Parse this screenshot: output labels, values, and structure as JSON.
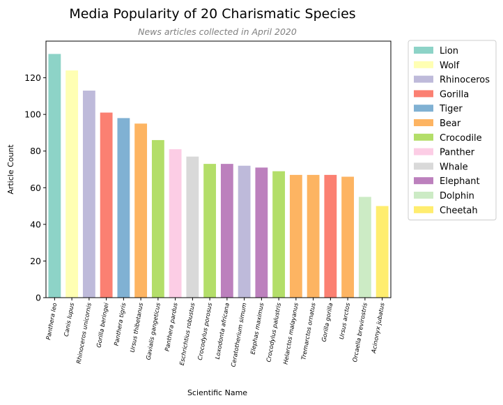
{
  "chart_data": {
    "type": "bar",
    "title": "Media Popularity of 20 Charismatic Species",
    "subtitle": "News articles collected in April 2020",
    "xlabel": "Scientific Name",
    "ylabel": "Article Count",
    "ylim": [
      0,
      140
    ],
    "yticks": [
      0,
      20,
      40,
      60,
      80,
      100,
      120
    ],
    "grid": false,
    "legend_placement": "outside-right-top",
    "categories": [
      "Panthera leo",
      "Canis lupus",
      "Rhinoceros unicornis",
      "Gorilla beringei",
      "Panthera tigris",
      "Ursus thibetanus",
      "Gavialis gangeticus",
      "Panthera pardus",
      "Eschrichtius robustus",
      "Crocodylus porosus",
      "Loxodonta africana",
      "Ceratotherium simum",
      "Elephas maximus",
      "Crocodylus palustris",
      "Helarctos malayanus",
      "Tremarctos ornatus",
      "Gorilla gorilla",
      "Ursus arctos",
      "Orcaella brevirostris",
      "Acinonyx jubatus"
    ],
    "values": [
      133,
      124,
      113,
      101,
      98,
      95,
      86,
      81,
      77,
      73,
      73,
      72,
      71,
      69,
      67,
      67,
      67,
      66,
      55,
      50
    ],
    "groups": [
      "Lion",
      "Wolf",
      "Rhinoceros",
      "Gorilla",
      "Tiger",
      "Bear",
      "Crocodile",
      "Panther",
      "Whale",
      "Crocodile",
      "Elephant",
      "Rhinoceros",
      "Elephant",
      "Crocodile",
      "Bear",
      "Bear",
      "Gorilla",
      "Bear",
      "Dolphin",
      "Cheetah"
    ],
    "legend": [
      {
        "name": "Lion",
        "color": "#8dd3c7"
      },
      {
        "name": "Wolf",
        "color": "#ffffb3"
      },
      {
        "name": "Rhinoceros",
        "color": "#bebada"
      },
      {
        "name": "Gorilla",
        "color": "#fb8072"
      },
      {
        "name": "Tiger",
        "color": "#80b1d3"
      },
      {
        "name": "Bear",
        "color": "#fdb462"
      },
      {
        "name": "Crocodile",
        "color": "#b3de69"
      },
      {
        "name": "Panther",
        "color": "#fccde5"
      },
      {
        "name": "Whale",
        "color": "#d9d9d9"
      },
      {
        "name": "Elephant",
        "color": "#bc80bd"
      },
      {
        "name": "Dolphin",
        "color": "#ccebc5"
      },
      {
        "name": "Cheetah",
        "color": "#ffed6f"
      }
    ]
  }
}
